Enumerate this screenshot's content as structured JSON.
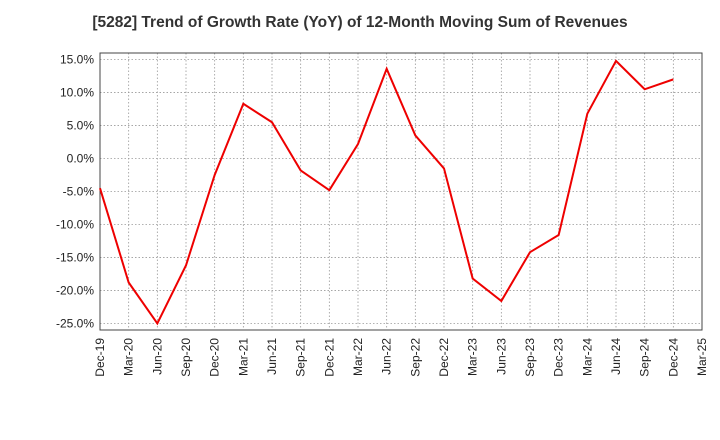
{
  "chart_data": {
    "type": "line",
    "title": "[5282]  Trend of Growth Rate (YoY) of 12-Month Moving Sum of Revenues",
    "xlabel": "",
    "ylabel": "",
    "ylim": [
      -26,
      16
    ],
    "grid": true,
    "x_ticks": [
      "Dec-19",
      "Mar-20",
      "Jun-20",
      "Sep-20",
      "Dec-20",
      "Mar-21",
      "Jun-21",
      "Sep-21",
      "Dec-21",
      "Mar-22",
      "Jun-22",
      "Sep-22",
      "Dec-22",
      "Mar-23",
      "Jun-23",
      "Sep-23",
      "Dec-23",
      "Mar-24",
      "Jun-24",
      "Sep-24",
      "Dec-24",
      "Mar-25"
    ],
    "y_ticks": [
      15,
      10,
      5,
      0,
      -5,
      -10,
      -15,
      -20,
      -25
    ],
    "y_tick_labels": [
      "15.0%",
      "10.0%",
      "5.0%",
      "0.0%",
      "-5.0%",
      "-10.0%",
      "-15.0%",
      "-20.0%",
      "-25.0%"
    ],
    "series": [
      {
        "color": "#ee0000",
        "x": [
          "Dec-19",
          "Mar-20",
          "Jun-20",
          "Sep-20",
          "Dec-20",
          "Mar-21",
          "Jun-21",
          "Sep-21",
          "Dec-21",
          "Mar-22",
          "Jun-22",
          "Sep-22",
          "Dec-22",
          "Mar-23",
          "Jun-23",
          "Sep-23",
          "Dec-23",
          "Mar-24",
          "Jun-24",
          "Sep-24",
          "Dec-24"
        ],
        "values": [
          -4.5,
          -18.8,
          -25.0,
          -16.2,
          -2.5,
          8.3,
          5.5,
          -1.8,
          -4.8,
          2.2,
          13.6,
          3.5,
          -1.5,
          -18.2,
          -21.6,
          -14.2,
          -11.6,
          6.8,
          14.8,
          10.5,
          12.0
        ]
      }
    ]
  }
}
